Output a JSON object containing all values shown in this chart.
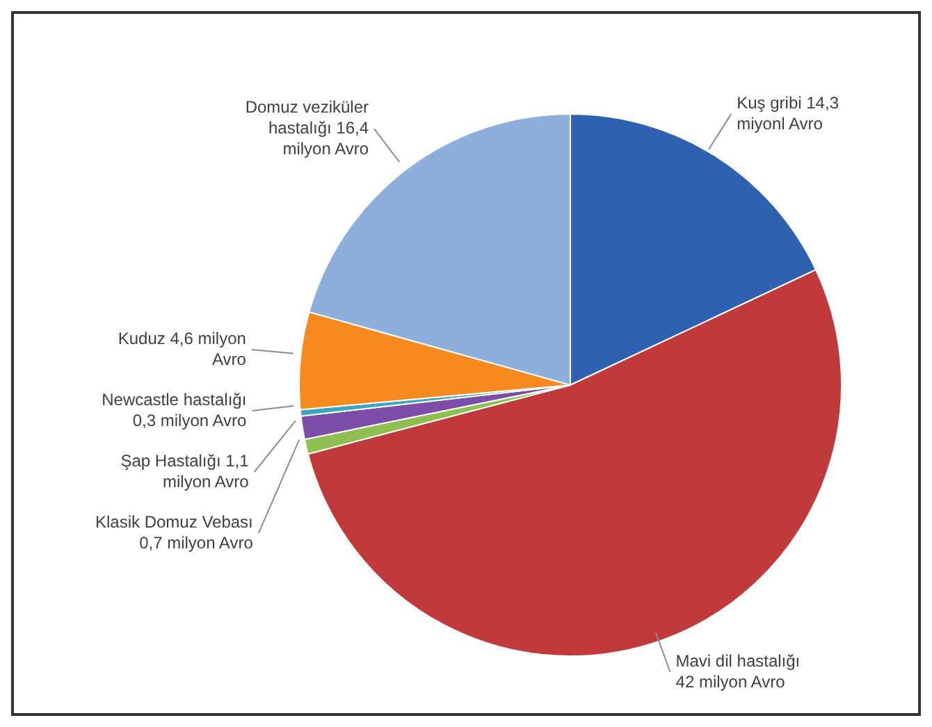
{
  "chart_data": {
    "type": "pie",
    "categories": [
      "Kuş gribi",
      "Mavi dil hastalığı",
      "Klasik Domuz Vebası",
      "Şap Hastalığı",
      "Newcastle hastalığı",
      "Kuduz",
      "Domuz veziküler hastalığı"
    ],
    "values": [
      14.3,
      42,
      0.7,
      1.1,
      0.3,
      4.6,
      16.4
    ],
    "value_labels": [
      "14,3 miyonl Avro",
      "42 milyon Avro",
      "0,7 milyon Avro",
      "1,1 milyon Avro",
      "0,3 milyon Avro",
      "4,6 milyon Avro",
      "16,4 milyon Avro"
    ],
    "colors": [
      "#2e62b0",
      "#c0393b",
      "#8fbf4f",
      "#7b4da6",
      "#3aa6c4",
      "#f58a1f",
      "#8eaedc"
    ],
    "legend": false
  }
}
